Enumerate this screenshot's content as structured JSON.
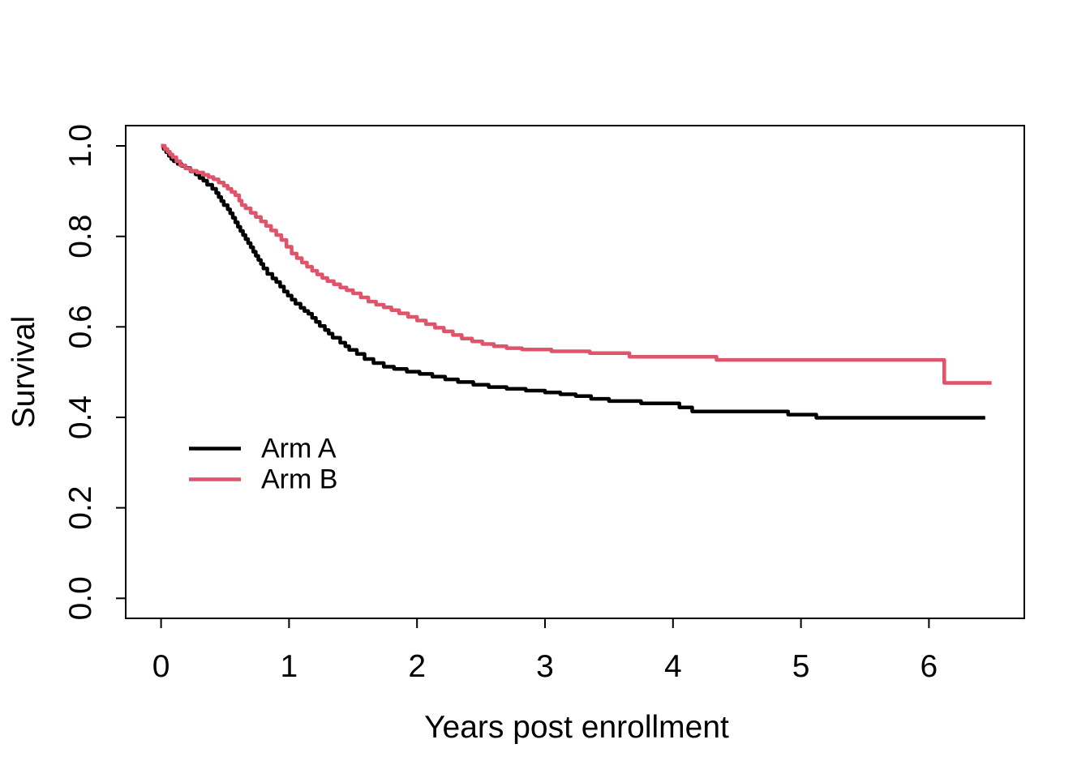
{
  "chart_data": {
    "type": "line",
    "subtype": "kaplan-meier-step",
    "title": "",
    "xlabel": "Years post enrollment",
    "ylabel": "Survival",
    "xlim": [
      0,
      6.6
    ],
    "ylim": [
      0.0,
      1.0
    ],
    "grid": false,
    "legend_position": "inside-left-middle",
    "x_ticks": [
      {
        "v": 0,
        "label": "0"
      },
      {
        "v": 1,
        "label": "1"
      },
      {
        "v": 2,
        "label": "2"
      },
      {
        "v": 3,
        "label": "3"
      },
      {
        "v": 4,
        "label": "4"
      },
      {
        "v": 5,
        "label": "5"
      },
      {
        "v": 6,
        "label": "6"
      }
    ],
    "y_ticks": [
      {
        "v": 0.0,
        "label": "0.0"
      },
      {
        "v": 0.2,
        "label": "0.2"
      },
      {
        "v": 0.4,
        "label": "0.4"
      },
      {
        "v": 0.6,
        "label": "0.6"
      },
      {
        "v": 0.8,
        "label": "0.8"
      },
      {
        "v": 1.0,
        "label": "1.0"
      }
    ],
    "series": [
      {
        "name": "Arm A",
        "color": "#000000",
        "end_t": 6.44,
        "points": [
          [
            0,
            1
          ],
          [
            0.02,
            0.993
          ],
          [
            0.04,
            0.986
          ],
          [
            0.06,
            0.978
          ],
          [
            0.08,
            0.971
          ],
          [
            0.1,
            0.966
          ],
          [
            0.13,
            0.96
          ],
          [
            0.16,
            0.956
          ],
          [
            0.19,
            0.951
          ],
          [
            0.23,
            0.944
          ],
          [
            0.27,
            0.937
          ],
          [
            0.3,
            0.929
          ],
          [
            0.33,
            0.923
          ],
          [
            0.36,
            0.914
          ],
          [
            0.4,
            0.905
          ],
          [
            0.43,
            0.896
          ],
          [
            0.45,
            0.887
          ],
          [
            0.47,
            0.878
          ],
          [
            0.49,
            0.869
          ],
          [
            0.52,
            0.86
          ],
          [
            0.54,
            0.851
          ],
          [
            0.56,
            0.841
          ],
          [
            0.58,
            0.831
          ],
          [
            0.6,
            0.821
          ],
          [
            0.62,
            0.812
          ],
          [
            0.64,
            0.803
          ],
          [
            0.66,
            0.794
          ],
          [
            0.68,
            0.785
          ],
          [
            0.7,
            0.776
          ],
          [
            0.72,
            0.766
          ],
          [
            0.74,
            0.757
          ],
          [
            0.76,
            0.748
          ],
          [
            0.78,
            0.739
          ],
          [
            0.8,
            0.729
          ],
          [
            0.83,
            0.717
          ],
          [
            0.87,
            0.707
          ],
          [
            0.9,
            0.699
          ],
          [
            0.93,
            0.689
          ],
          [
            0.96,
            0.678
          ],
          [
            0.99,
            0.669
          ],
          [
            1.02,
            0.66
          ],
          [
            1.05,
            0.651
          ],
          [
            1.09,
            0.642
          ],
          [
            1.12,
            0.635
          ],
          [
            1.15,
            0.629
          ],
          [
            1.18,
            0.62
          ],
          [
            1.21,
            0.611
          ],
          [
            1.24,
            0.602
          ],
          [
            1.28,
            0.593
          ],
          [
            1.31,
            0.585
          ],
          [
            1.34,
            0.576
          ],
          [
            1.4,
            0.565
          ],
          [
            1.44,
            0.557
          ],
          [
            1.47,
            0.549
          ],
          [
            1.53,
            0.54
          ],
          [
            1.59,
            0.529
          ],
          [
            1.66,
            0.52
          ],
          [
            1.74,
            0.512
          ],
          [
            1.82,
            0.507
          ],
          [
            1.92,
            0.501
          ],
          [
            2.02,
            0.496
          ],
          [
            2.12,
            0.49
          ],
          [
            2.22,
            0.484
          ],
          [
            2.32,
            0.478
          ],
          [
            2.44,
            0.472
          ],
          [
            2.56,
            0.467
          ],
          [
            2.7,
            0.463
          ],
          [
            2.85,
            0.459
          ],
          [
            3.0,
            0.455
          ],
          [
            3.12,
            0.451
          ],
          [
            3.24,
            0.447
          ],
          [
            3.36,
            0.441
          ],
          [
            3.5,
            0.436
          ],
          [
            3.75,
            0.431
          ],
          [
            4.05,
            0.422
          ],
          [
            4.15,
            0.413
          ],
          [
            4.9,
            0.406
          ],
          [
            5.12,
            0.399
          ]
        ]
      },
      {
        "name": "Arm B",
        "color": "#DF536B",
        "end_t": 6.49,
        "points": [
          [
            0,
            1
          ],
          [
            0.03,
            0.993
          ],
          [
            0.05,
            0.987
          ],
          [
            0.07,
            0.981
          ],
          [
            0.09,
            0.975
          ],
          [
            0.12,
            0.966
          ],
          [
            0.15,
            0.957
          ],
          [
            0.19,
            0.95
          ],
          [
            0.23,
            0.945
          ],
          [
            0.28,
            0.941
          ],
          [
            0.33,
            0.936
          ],
          [
            0.37,
            0.931
          ],
          [
            0.41,
            0.926
          ],
          [
            0.45,
            0.919
          ],
          [
            0.49,
            0.912
          ],
          [
            0.52,
            0.905
          ],
          [
            0.55,
            0.898
          ],
          [
            0.58,
            0.891
          ],
          [
            0.61,
            0.879
          ],
          [
            0.63,
            0.869
          ],
          [
            0.66,
            0.862
          ],
          [
            0.7,
            0.852
          ],
          [
            0.74,
            0.843
          ],
          [
            0.78,
            0.833
          ],
          [
            0.82,
            0.823
          ],
          [
            0.86,
            0.813
          ],
          [
            0.9,
            0.803
          ],
          [
            0.94,
            0.792
          ],
          [
            0.98,
            0.777
          ],
          [
            1.02,
            0.762
          ],
          [
            1.06,
            0.752
          ],
          [
            1.1,
            0.742
          ],
          [
            1.14,
            0.733
          ],
          [
            1.18,
            0.724
          ],
          [
            1.22,
            0.716
          ],
          [
            1.26,
            0.708
          ],
          [
            1.3,
            0.701
          ],
          [
            1.35,
            0.694
          ],
          [
            1.4,
            0.687
          ],
          [
            1.45,
            0.681
          ],
          [
            1.5,
            0.674
          ],
          [
            1.56,
            0.665
          ],
          [
            1.62,
            0.656
          ],
          [
            1.68,
            0.649
          ],
          [
            1.74,
            0.643
          ],
          [
            1.8,
            0.637
          ],
          [
            1.86,
            0.63
          ],
          [
            1.93,
            0.622
          ],
          [
            2.0,
            0.614
          ],
          [
            2.07,
            0.606
          ],
          [
            2.14,
            0.598
          ],
          [
            2.21,
            0.59
          ],
          [
            2.28,
            0.582
          ],
          [
            2.35,
            0.574
          ],
          [
            2.43,
            0.568
          ],
          [
            2.51,
            0.562
          ],
          [
            2.6,
            0.557
          ],
          [
            2.7,
            0.553
          ],
          [
            2.82,
            0.55
          ],
          [
            3.05,
            0.546
          ],
          [
            3.35,
            0.542
          ],
          [
            3.66,
            0.534
          ],
          [
            4.34,
            0.527
          ],
          [
            6.12,
            0.476
          ]
        ]
      }
    ]
  },
  "legend": {
    "entries": [
      {
        "label": "Arm A",
        "color": "#000000"
      },
      {
        "label": "Arm B",
        "color": "#DF536B"
      }
    ]
  }
}
